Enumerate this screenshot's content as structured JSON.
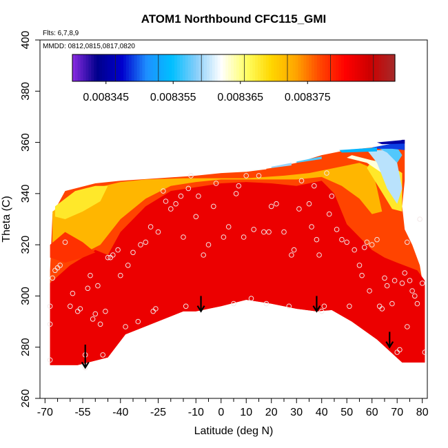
{
  "chart_data": {
    "type": "heatmap",
    "title": "ATOM1 Northbound CFC115_GMI",
    "xlabel": "Latitude (deg N)",
    "ylabel": "Theta (C)",
    "xlim": [
      -72,
      82
    ],
    "ylim": [
      260,
      400
    ],
    "x_ticks": [
      -70,
      -55,
      -40,
      -25,
      -10,
      0,
      10,
      20,
      30,
      40,
      50,
      60,
      70,
      80
    ],
    "x_tick_labels": [
      "-70",
      "-55",
      "-40",
      "-25",
      "-10",
      "0",
      "10",
      "20",
      "30",
      "40",
      "50",
      "60",
      "70",
      "80"
    ],
    "x_minor_ticks": [
      -65,
      -60,
      -50,
      -45,
      -35,
      -30,
      -20,
      -15,
      -5,
      5,
      15,
      25,
      35,
      45,
      55,
      65,
      75
    ],
    "y_ticks": [
      260,
      280,
      300,
      320,
      340,
      360,
      380,
      400
    ],
    "y_tick_labels": [
      "260",
      "280",
      "300",
      "320",
      "340",
      "360",
      "380",
      "400"
    ],
    "notes": {
      "flights": "Flts: 6,7,8,9",
      "dates": "MMDD: 0812,0815,0817,0820"
    },
    "colorbar": {
      "range": [
        0.00834,
        0.008388
      ],
      "tick_values": [
        0.008345,
        0.008355,
        0.008365,
        0.008375
      ],
      "tick_labels": [
        "0.008345",
        "0.008355",
        "0.008365",
        "0.008375"
      ],
      "colors": [
        "#8a2be2",
        "#00008b",
        "#0000cd",
        "#1e90ff",
        "#00bfff",
        "#87cefa",
        "#ffffff",
        "#ffff66",
        "#ffd700",
        "#ffa500",
        "#ff4500",
        "#ff0000",
        "#cc0000",
        "#a52a2a"
      ]
    },
    "surface_boundary": [
      [
        -68,
        310
      ],
      [
        -67,
        332
      ],
      [
        -62,
        341
      ],
      [
        -50,
        344
      ],
      [
        -40,
        345
      ],
      [
        -25,
        346
      ],
      [
        -10,
        347
      ],
      [
        0,
        348
      ],
      [
        10,
        348.5
      ],
      [
        20,
        350
      ],
      [
        30,
        352
      ],
      [
        40,
        355
      ],
      [
        50,
        357
      ],
      [
        60,
        358
      ],
      [
        68,
        359
      ],
      [
        72,
        361
      ],
      [
        73,
        361
      ],
      [
        73,
        345
      ],
      [
        72,
        335
      ],
      [
        73,
        326
      ],
      [
        76,
        320
      ],
      [
        79,
        312
      ],
      [
        80,
        306
      ],
      [
        81,
        305
      ],
      [
        81,
        274
      ],
      [
        72,
        274
      ],
      [
        62,
        283
      ],
      [
        52,
        290
      ],
      [
        44,
        294.5
      ],
      [
        38,
        294
      ],
      [
        30,
        295
      ],
      [
        20,
        297
      ],
      [
        10,
        298.5
      ],
      [
        0,
        296
      ],
      [
        -5,
        295
      ],
      [
        -10,
        294
      ],
      [
        -15,
        294
      ],
      [
        -38,
        285
      ],
      [
        -45,
        276
      ],
      [
        -57,
        273
      ],
      [
        -68,
        273
      ]
    ],
    "regions": [
      {
        "name": "core",
        "value": 0.008382,
        "boundary": [
          [
            -68,
            305
          ],
          [
            -60,
            312
          ],
          [
            -50,
            318
          ],
          [
            -45,
            316
          ],
          [
            -40,
            325
          ],
          [
            -30,
            335
          ],
          [
            -20,
            341
          ],
          [
            -10,
            342.5
          ],
          [
            0,
            344
          ],
          [
            10,
            344.5
          ],
          [
            20,
            344
          ],
          [
            30,
            343
          ],
          [
            40,
            345
          ],
          [
            45,
            340
          ],
          [
            50,
            328
          ],
          [
            55,
            323
          ],
          [
            60,
            318
          ],
          [
            65,
            315
          ],
          [
            70,
            313
          ],
          [
            78,
            310
          ],
          [
            81,
            306
          ],
          [
            81,
            274
          ],
          [
            72,
            274
          ],
          [
            62,
            283
          ],
          [
            52,
            290
          ],
          [
            44,
            294.5
          ],
          [
            38,
            294
          ],
          [
            30,
            295
          ],
          [
            20,
            297
          ],
          [
            10,
            298.5
          ],
          [
            0,
            296
          ],
          [
            -10,
            294
          ],
          [
            -15,
            294
          ],
          [
            -38,
            285
          ],
          [
            -45,
            276
          ],
          [
            -57,
            273
          ],
          [
            -68,
            273
          ]
        ]
      },
      {
        "name": "upper-rim",
        "value": 0.008372,
        "boundary": [
          [
            -67,
            333
          ],
          [
            -55,
            341
          ],
          [
            -40,
            344.5
          ],
          [
            -30,
            345.5
          ],
          [
            -15,
            346
          ],
          [
            0,
            346
          ],
          [
            10,
            346
          ],
          [
            25,
            347
          ],
          [
            35,
            348
          ],
          [
            45,
            350
          ],
          [
            55,
            352
          ],
          [
            60,
            350
          ],
          [
            62,
            342
          ],
          [
            64,
            333
          ],
          [
            60,
            332
          ],
          [
            55,
            338
          ],
          [
            48,
            343
          ],
          [
            40,
            346.5
          ],
          [
            30,
            345.5
          ],
          [
            20,
            345.5
          ],
          [
            10,
            345.5
          ],
          [
            0,
            345.5
          ],
          [
            -10,
            344.5
          ],
          [
            -20,
            343
          ],
          [
            -30,
            338
          ],
          [
            -40,
            330
          ],
          [
            -48,
            320
          ],
          [
            -58,
            315
          ],
          [
            -67,
            318
          ]
        ]
      },
      {
        "name": "upper-left-orange",
        "value": 0.008368,
        "boundary": [
          [
            -66,
            335
          ],
          [
            -58,
            341
          ],
          [
            -50,
            343
          ],
          [
            -45,
            343
          ],
          [
            -48,
            337
          ],
          [
            -55,
            333
          ],
          [
            -62,
            330
          ],
          [
            -66,
            331
          ]
        ]
      },
      {
        "name": "left-shoulder-red",
        "value": 0.008378,
        "boundary": [
          [
            -68,
            320
          ],
          [
            -62,
            325
          ],
          [
            -55,
            321
          ],
          [
            -50,
            317
          ],
          [
            -55,
            315
          ],
          [
            -62,
            313
          ],
          [
            -68,
            315
          ]
        ]
      },
      {
        "name": "upper-right-orange",
        "value": 0.008368,
        "boundary": [
          [
            58,
            350
          ],
          [
            63,
            342
          ],
          [
            68,
            334
          ],
          [
            72,
            333
          ],
          [
            72,
            348
          ],
          [
            66,
            352
          ],
          [
            60,
            353
          ]
        ]
      },
      {
        "name": "upper-right-yellow",
        "value": 0.008363,
        "boundary": [
          [
            52,
            355
          ],
          [
            60,
            353
          ],
          [
            65,
            352
          ],
          [
            68,
            343
          ],
          [
            64,
            348
          ],
          [
            58,
            352
          ],
          [
            50,
            354
          ]
        ]
      },
      {
        "name": "upper-right-white",
        "value": 0.00836,
        "boundary": [
          [
            58,
            357
          ],
          [
            66,
            357
          ],
          [
            70,
            352
          ],
          [
            72,
            342
          ],
          [
            70,
            336
          ],
          [
            66,
            342
          ],
          [
            62,
            352
          ]
        ]
      },
      {
        "name": "upper-right-lightblue",
        "value": 0.008357,
        "boundary": [
          [
            62,
            358
          ],
          [
            70,
            358
          ],
          [
            72,
            355
          ],
          [
            70,
            352
          ],
          [
            66,
            356
          ]
        ]
      },
      {
        "name": "top-blue",
        "value": 0.008349,
        "boundary": [
          [
            60,
            358
          ],
          [
            68,
            359.5
          ],
          [
            72,
            361
          ],
          [
            73,
            361
          ],
          [
            73,
            357
          ],
          [
            68,
            357.5
          ],
          [
            62,
            357.5
          ]
        ]
      },
      {
        "name": "top-dark-blue",
        "value": 0.008345,
        "boundary": [
          [
            62,
            360
          ],
          [
            73,
            361
          ],
          [
            73,
            359.5
          ],
          [
            64,
            359.3
          ]
        ]
      },
      {
        "name": "top-rim-blue",
        "value": 0.008354,
        "boundary": [
          [
            47,
            357
          ],
          [
            62,
            358
          ],
          [
            62,
            356.5
          ],
          [
            48,
            356
          ]
        ]
      },
      {
        "name": "rim-cyan-1",
        "value": 0.008357,
        "boundary": [
          [
            30,
            352.5
          ],
          [
            40,
            354.5
          ],
          [
            40,
            353.5
          ],
          [
            30,
            352
          ]
        ]
      },
      {
        "name": "rim-cyan-2",
        "value": 0.008359,
        "boundary": [
          [
            20,
            350.5
          ],
          [
            28,
            352
          ],
          [
            28,
            351
          ],
          [
            20,
            350
          ]
        ]
      },
      {
        "name": "rim-light",
        "value": 0.008362,
        "boundary": [
          [
            10,
            349
          ],
          [
            18,
            350
          ],
          [
            18,
            349.5
          ],
          [
            10,
            348.5
          ]
        ]
      }
    ],
    "sample_points": [
      [
        -68,
        275
      ],
      [
        -68,
        289
      ],
      [
        -68,
        296
      ],
      [
        -67,
        307
      ],
      [
        -66,
        310
      ],
      [
        -65,
        311
      ],
      [
        -64,
        312
      ],
      [
        -62,
        321
      ],
      [
        -60,
        296
      ],
      [
        -59,
        301
      ],
      [
        -57,
        294
      ],
      [
        -56,
        295
      ],
      [
        -54,
        272
      ],
      [
        -54,
        277
      ],
      [
        -53,
        303
      ],
      [
        -52,
        308
      ],
      [
        -51,
        291
      ],
      [
        -50,
        293
      ],
      [
        -49,
        304
      ],
      [
        -48,
        289
      ],
      [
        -47,
        277
      ],
      [
        -46,
        294
      ],
      [
        -45,
        315
      ],
      [
        -44,
        315
      ],
      [
        -43,
        316
      ],
      [
        -41,
        318
      ],
      [
        -40,
        308
      ],
      [
        -38,
        288
      ],
      [
        -37,
        312
      ],
      [
        -35,
        317
      ],
      [
        -33,
        290
      ],
      [
        -32,
        320
      ],
      [
        -30,
        321
      ],
      [
        -28,
        327
      ],
      [
        -27,
        294
      ],
      [
        -26,
        295
      ],
      [
        -25,
        325
      ],
      [
        -23,
        341
      ],
      [
        -22,
        337
      ],
      [
        -20,
        334
      ],
      [
        -18,
        336
      ],
      [
        -16,
        339
      ],
      [
        -15,
        323
      ],
      [
        -14,
        296
      ],
      [
        -13,
        342
      ],
      [
        -12,
        347
      ],
      [
        -10,
        331
      ],
      [
        -9,
        339
      ],
      [
        -7,
        316
      ],
      [
        -5,
        320
      ],
      [
        -3,
        335
      ],
      [
        -2,
        344
      ],
      [
        1,
        323
      ],
      [
        3,
        327
      ],
      [
        5,
        297
      ],
      [
        6,
        340
      ],
      [
        7,
        343
      ],
      [
        9,
        323
      ],
      [
        10,
        347
      ],
      [
        12,
        299
      ],
      [
        13,
        326
      ],
      [
        15,
        347
      ],
      [
        17,
        325
      ],
      [
        18,
        297
      ],
      [
        19,
        325
      ],
      [
        20,
        335
      ],
      [
        22,
        336
      ],
      [
        25,
        325
      ],
      [
        27,
        296
      ],
      [
        28,
        316
      ],
      [
        29,
        318
      ],
      [
        31,
        334
      ],
      [
        32,
        345
      ],
      [
        35,
        336
      ],
      [
        36,
        327
      ],
      [
        37,
        343
      ],
      [
        38,
        322
      ],
      [
        39,
        316
      ],
      [
        40,
        294
      ],
      [
        41,
        296
      ],
      [
        42,
        348
      ],
      [
        43,
        332
      ],
      [
        44,
        339
      ],
      [
        46,
        326
      ],
      [
        48,
        322
      ],
      [
        50,
        321
      ],
      [
        51,
        296
      ],
      [
        53,
        318
      ],
      [
        55,
        312
      ],
      [
        56,
        308
      ],
      [
        57,
        319
      ],
      [
        58,
        321
      ],
      [
        59,
        302
      ],
      [
        60,
        320
      ],
      [
        62,
        322
      ],
      [
        63,
        296
      ],
      [
        64,
        295
      ],
      [
        65,
        307
      ],
      [
        66,
        304
      ],
      [
        68,
        297
      ],
      [
        69,
        306
      ],
      [
        70,
        278
      ],
      [
        71,
        279
      ],
      [
        72,
        305
      ],
      [
        73,
        309
      ],
      [
        74,
        288
      ],
      [
        74,
        321
      ],
      [
        75,
        306
      ],
      [
        76,
        302
      ],
      [
        77,
        300
      ],
      [
        78,
        297
      ],
      [
        79,
        330
      ],
      [
        80,
        305
      ],
      [
        81,
        278
      ]
    ],
    "arrows": [
      {
        "latitude": -54,
        "top": 281,
        "bottom": 272
      },
      {
        "latitude": -8,
        "top": 300,
        "bottom": 294
      },
      {
        "latitude": 38,
        "top": 300,
        "bottom": 294
      },
      {
        "latitude": 67,
        "top": 286,
        "bottom": 280
      }
    ]
  }
}
